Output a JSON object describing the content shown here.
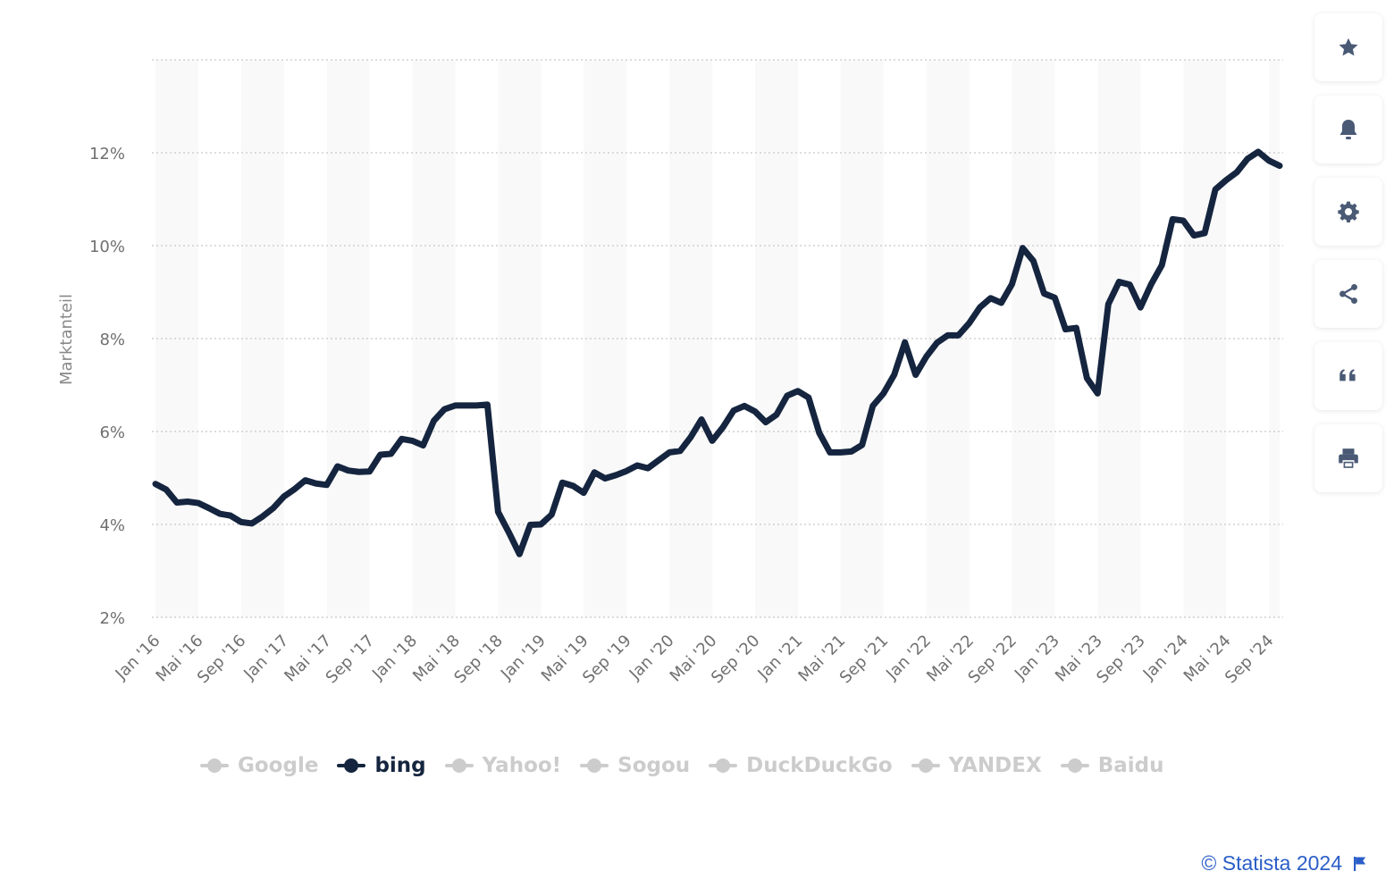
{
  "toolbar": {
    "buttons": [
      {
        "name": "favorite",
        "icon": "star-icon"
      },
      {
        "name": "notification",
        "icon": "bell-icon"
      },
      {
        "name": "settings",
        "icon": "gear-icon"
      },
      {
        "name": "share",
        "icon": "share-icon"
      },
      {
        "name": "cite",
        "icon": "quote-icon"
      },
      {
        "name": "print",
        "icon": "printer-icon"
      }
    ],
    "icon_color": "#4a5a75"
  },
  "legend": {
    "items": [
      {
        "label": "Google",
        "active": false
      },
      {
        "label": "bing",
        "active": true
      },
      {
        "label": "Yahoo!",
        "active": false
      },
      {
        "label": "Sogou",
        "active": false
      },
      {
        "label": "DuckDuckGo",
        "active": false
      },
      {
        "label": "YANDEX",
        "active": false
      },
      {
        "label": "Baidu",
        "active": false
      }
    ],
    "active_color": "#15253f",
    "inactive_color": "#cccccc"
  },
  "credits": {
    "text": "© Statista 2024",
    "color": "#2a5ec8",
    "icon": "flag-icon"
  },
  "chart_data": {
    "type": "line",
    "ylabel": "Marktanteil",
    "xlabel": "",
    "ylim": [
      2,
      14
    ],
    "yticks": [
      2,
      4,
      6,
      8,
      10,
      12
    ],
    "ytick_labels": [
      "2%",
      "4%",
      "6%",
      "8%",
      "10%",
      "12%"
    ],
    "y_unit": "%",
    "grid": "horizontal dotted",
    "alternating_bands": true,
    "x_start": "Jan '16",
    "x_end": "Okt '24",
    "xtick_labels": [
      "Jan '16",
      "Mai '16",
      "Sep '16",
      "Jan '17",
      "Mai '17",
      "Sep '17",
      "Jan '18",
      "Mai '18",
      "Sep '18",
      "Jan '19",
      "Mai '19",
      "Sep '19",
      "Jan '20",
      "Mai '20",
      "Sep '20",
      "Jan '21",
      "Mai '21",
      "Sep '21",
      "Jan '22",
      "Mai '22",
      "Sep '22",
      "Jan '23",
      "Mai '23",
      "Sep '23",
      "Jan '24",
      "Mai '24",
      "Sep '24"
    ],
    "series": [
      {
        "name": "bing",
        "color": "#15253f",
        "values": [
          4.87,
          4.75,
          4.47,
          4.49,
          4.46,
          4.35,
          4.23,
          4.19,
          4.05,
          4.02,
          4.17,
          4.35,
          4.6,
          4.76,
          4.95,
          4.88,
          4.85,
          5.25,
          5.16,
          5.13,
          5.14,
          5.5,
          5.52,
          5.84,
          5.8,
          5.7,
          6.23,
          6.48,
          6.56,
          6.56,
          6.56,
          6.58,
          4.27,
          3.83,
          3.36,
          3.99,
          4.0,
          4.21,
          4.9,
          4.83,
          4.68,
          5.12,
          4.99,
          5.06,
          5.15,
          5.27,
          5.21,
          5.38,
          5.55,
          5.58,
          5.88,
          6.26,
          5.8,
          6.09,
          6.45,
          6.55,
          6.43,
          6.2,
          6.36,
          6.77,
          6.87,
          6.73,
          5.97,
          5.55,
          5.55,
          5.57,
          5.71,
          6.55,
          6.82,
          7.22,
          7.92,
          7.22,
          7.61,
          7.91,
          8.07,
          8.07,
          8.33,
          8.67,
          8.87,
          8.77,
          9.17,
          9.95,
          9.67,
          8.97,
          8.88,
          8.2,
          8.23,
          7.15,
          6.82,
          8.74,
          9.22,
          9.16,
          8.67,
          9.17,
          9.58,
          10.57,
          10.54,
          10.22,
          10.27,
          11.21,
          11.41,
          11.58,
          11.87,
          12.02,
          11.83,
          11.72
        ]
      }
    ]
  }
}
